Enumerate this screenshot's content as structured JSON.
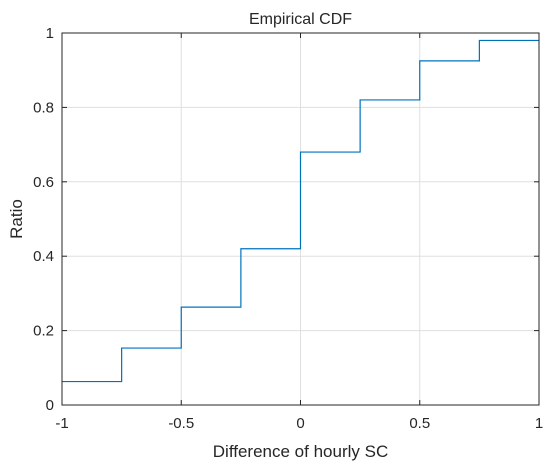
{
  "chart_data": {
    "type": "line",
    "subtype": "stairs",
    "title": "Empirical CDF",
    "xlabel": "Difference of hourly SC",
    "ylabel": "Ratio",
    "xlim": [
      -1,
      1
    ],
    "ylim": [
      0,
      1
    ],
    "grid": true,
    "box": true,
    "xticks": [
      -1,
      -0.5,
      0,
      0.5,
      1
    ],
    "xtick_labels": [
      "-1",
      "-0.5",
      "0",
      "0.5",
      "1"
    ],
    "yticks": [
      0,
      0.2,
      0.4,
      0.6,
      0.8,
      1
    ],
    "ytick_labels": [
      "0",
      "0.2",
      "0.4",
      "0.6",
      "0.8",
      "1"
    ],
    "series": [
      {
        "color": "#0072bd",
        "x": [
          -1,
          -0.75,
          -0.75,
          -0.5,
          -0.5,
          -0.25,
          -0.25,
          0,
          0,
          0.25,
          0.25,
          0.5,
          0.5,
          0.75,
          0.75,
          1
        ],
        "y": [
          0.063,
          0.063,
          0.153,
          0.153,
          0.263,
          0.263,
          0.42,
          0.42,
          0.68,
          0.68,
          0.82,
          0.82,
          0.925,
          0.925,
          0.98,
          0.98
        ]
      }
    ],
    "colors": {
      "axis": "#262626",
      "grid": "#dfdfdf",
      "background": "#ffffff"
    }
  }
}
